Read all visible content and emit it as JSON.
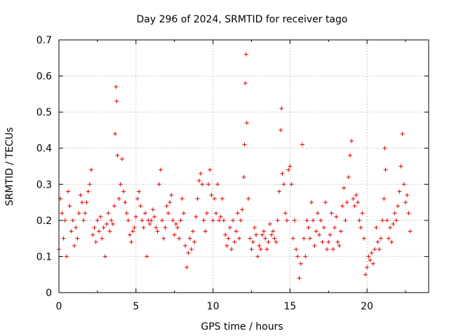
{
  "chart_data": {
    "type": "scatter",
    "title": "Day 296 of 2024, SRMTID for receiver tago",
    "xlabel": "GPS time / hours",
    "ylabel": "SRMTID / TECUs",
    "xlim": [
      0,
      24
    ],
    "ylim": [
      0,
      0.7
    ],
    "xticks": [
      0,
      5,
      10,
      15,
      20
    ],
    "xtick_labels": [
      "0",
      "5",
      "10",
      "15",
      "20"
    ],
    "yticks": [
      0,
      0.1,
      0.2,
      0.3,
      0.4,
      0.5,
      0.6,
      0.7
    ],
    "ytick_labels": [
      "0",
      "0.1",
      "0.2",
      "0.3",
      "0.4",
      "0.5",
      "0.6",
      "0.7"
    ],
    "grid": true,
    "marker": "plus",
    "color": "#e00000",
    "series": [
      {
        "name": "SRMTID",
        "points": [
          [
            0.0,
            0.12
          ],
          [
            0.1,
            0.26
          ],
          [
            0.2,
            0.22
          ],
          [
            0.3,
            0.15
          ],
          [
            0.4,
            0.2
          ],
          [
            0.5,
            0.1
          ],
          [
            0.6,
            0.28
          ],
          [
            0.7,
            0.24
          ],
          [
            0.8,
            0.17
          ],
          [
            0.9,
            0.2
          ],
          [
            1.0,
            0.13
          ],
          [
            1.1,
            0.18
          ],
          [
            1.2,
            0.15
          ],
          [
            1.3,
            0.22
          ],
          [
            1.4,
            0.27
          ],
          [
            1.5,
            0.25
          ],
          [
            1.6,
            0.2
          ],
          [
            1.7,
            0.22
          ],
          [
            1.8,
            0.25
          ],
          [
            1.9,
            0.28
          ],
          [
            2.0,
            0.3
          ],
          [
            2.1,
            0.34
          ],
          [
            2.2,
            0.16
          ],
          [
            2.3,
            0.18
          ],
          [
            2.4,
            0.14
          ],
          [
            2.5,
            0.2
          ],
          [
            2.6,
            0.17
          ],
          [
            2.7,
            0.21
          ],
          [
            2.8,
            0.15
          ],
          [
            2.9,
            0.18
          ],
          [
            3.0,
            0.1
          ],
          [
            3.1,
            0.19
          ],
          [
            3.2,
            0.22
          ],
          [
            3.3,
            0.17
          ],
          [
            3.4,
            0.2
          ],
          [
            3.5,
            0.19
          ],
          [
            3.6,
            0.24
          ],
          [
            3.65,
            0.44
          ],
          [
            3.7,
            0.57
          ],
          [
            3.75,
            0.53
          ],
          [
            3.8,
            0.38
          ],
          [
            3.9,
            0.26
          ],
          [
            4.0,
            0.3
          ],
          [
            4.1,
            0.37
          ],
          [
            4.2,
            0.28
          ],
          [
            4.3,
            0.25
          ],
          [
            4.4,
            0.22
          ],
          [
            4.5,
            0.2
          ],
          [
            4.6,
            0.16
          ],
          [
            4.7,
            0.14
          ],
          [
            4.8,
            0.17
          ],
          [
            4.9,
            0.18
          ],
          [
            5.0,
            0.21
          ],
          [
            5.1,
            0.26
          ],
          [
            5.2,
            0.28
          ],
          [
            5.3,
            0.24
          ],
          [
            5.4,
            0.2
          ],
          [
            5.5,
            0.18
          ],
          [
            5.6,
            0.22
          ],
          [
            5.7,
            0.1
          ],
          [
            5.8,
            0.2
          ],
          [
            5.9,
            0.19
          ],
          [
            6.0,
            0.2
          ],
          [
            6.1,
            0.23
          ],
          [
            6.2,
            0.21
          ],
          [
            6.3,
            0.18
          ],
          [
            6.4,
            0.17
          ],
          [
            6.5,
            0.3
          ],
          [
            6.6,
            0.34
          ],
          [
            6.7,
            0.2
          ],
          [
            6.8,
            0.15
          ],
          [
            6.9,
            0.18
          ],
          [
            7.0,
            0.24
          ],
          [
            7.1,
            0.22
          ],
          [
            7.2,
            0.25
          ],
          [
            7.3,
            0.27
          ],
          [
            7.4,
            0.2
          ],
          [
            7.5,
            0.16
          ],
          [
            7.6,
            0.19
          ],
          [
            7.7,
            0.18
          ],
          [
            7.8,
            0.15
          ],
          [
            7.9,
            0.2
          ],
          [
            8.0,
            0.26
          ],
          [
            8.1,
            0.22
          ],
          [
            8.2,
            0.13
          ],
          [
            8.3,
            0.07
          ],
          [
            8.4,
            0.11
          ],
          [
            8.5,
            0.15
          ],
          [
            8.6,
            0.12
          ],
          [
            8.7,
            0.17
          ],
          [
            8.8,
            0.14
          ],
          [
            8.9,
            0.21
          ],
          [
            9.0,
            0.26
          ],
          [
            9.1,
            0.31
          ],
          [
            9.2,
            0.33
          ],
          [
            9.3,
            0.3
          ],
          [
            9.4,
            0.2
          ],
          [
            9.5,
            0.17
          ],
          [
            9.6,
            0.22
          ],
          [
            9.7,
            0.3
          ],
          [
            9.8,
            0.34
          ],
          [
            9.9,
            0.27
          ],
          [
            10.0,
            0.2
          ],
          [
            10.1,
            0.26
          ],
          [
            10.2,
            0.22
          ],
          [
            10.3,
            0.3
          ],
          [
            10.4,
            0.2
          ],
          [
            10.5,
            0.21
          ],
          [
            10.6,
            0.26
          ],
          [
            10.7,
            0.2
          ],
          [
            10.8,
            0.16
          ],
          [
            10.9,
            0.13
          ],
          [
            11.0,
            0.15
          ],
          [
            11.1,
            0.18
          ],
          [
            11.2,
            0.12
          ],
          [
            11.3,
            0.2
          ],
          [
            11.4,
            0.14
          ],
          [
            11.5,
            0.17
          ],
          [
            11.6,
            0.22
          ],
          [
            11.7,
            0.15
          ],
          [
            11.8,
            0.2
          ],
          [
            11.9,
            0.23
          ],
          [
            12.0,
            0.32
          ],
          [
            12.05,
            0.41
          ],
          [
            12.1,
            0.58
          ],
          [
            12.15,
            0.66
          ],
          [
            12.2,
            0.47
          ],
          [
            12.3,
            0.26
          ],
          [
            12.4,
            0.15
          ],
          [
            12.5,
            0.12
          ],
          [
            12.6,
            0.14
          ],
          [
            12.7,
            0.18
          ],
          [
            12.8,
            0.16
          ],
          [
            12.9,
            0.1
          ],
          [
            13.0,
            0.13
          ],
          [
            13.1,
            0.12
          ],
          [
            13.2,
            0.16
          ],
          [
            13.3,
            0.17
          ],
          [
            13.4,
            0.15
          ],
          [
            13.5,
            0.12
          ],
          [
            13.6,
            0.14
          ],
          [
            13.7,
            0.19
          ],
          [
            13.8,
            0.16
          ],
          [
            13.9,
            0.17
          ],
          [
            14.0,
            0.15
          ],
          [
            14.1,
            0.14
          ],
          [
            14.2,
            0.2
          ],
          [
            14.3,
            0.28
          ],
          [
            14.4,
            0.45
          ],
          [
            14.45,
            0.51
          ],
          [
            14.5,
            0.33
          ],
          [
            14.6,
            0.3
          ],
          [
            14.7,
            0.22
          ],
          [
            14.8,
            0.2
          ],
          [
            14.9,
            0.34
          ],
          [
            15.0,
            0.35
          ],
          [
            15.1,
            0.3
          ],
          [
            15.2,
            0.15
          ],
          [
            15.3,
            0.2
          ],
          [
            15.4,
            0.12
          ],
          [
            15.5,
            0.1
          ],
          [
            15.6,
            0.04
          ],
          [
            15.7,
            0.08
          ],
          [
            15.8,
            0.41
          ],
          [
            15.9,
            0.15
          ],
          [
            16.0,
            0.1
          ],
          [
            16.1,
            0.2
          ],
          [
            16.2,
            0.18
          ],
          [
            16.3,
            0.15
          ],
          [
            16.4,
            0.25
          ],
          [
            16.5,
            0.2
          ],
          [
            16.6,
            0.13
          ],
          [
            16.7,
            0.17
          ],
          [
            16.8,
            0.22
          ],
          [
            16.9,
            0.16
          ],
          [
            17.0,
            0.2
          ],
          [
            17.1,
            0.14
          ],
          [
            17.2,
            0.18
          ],
          [
            17.3,
            0.25
          ],
          [
            17.4,
            0.12
          ],
          [
            17.5,
            0.14
          ],
          [
            17.6,
            0.16
          ],
          [
            17.7,
            0.22
          ],
          [
            17.8,
            0.12
          ],
          [
            17.9,
            0.18
          ],
          [
            18.0,
            0.21
          ],
          [
            18.1,
            0.14
          ],
          [
            18.2,
            0.13
          ],
          [
            18.3,
            0.17
          ],
          [
            18.4,
            0.24
          ],
          [
            18.5,
            0.29
          ],
          [
            18.6,
            0.2
          ],
          [
            18.7,
            0.25
          ],
          [
            18.8,
            0.32
          ],
          [
            18.9,
            0.38
          ],
          [
            19.0,
            0.42
          ],
          [
            19.1,
            0.26
          ],
          [
            19.2,
            0.24
          ],
          [
            19.3,
            0.27
          ],
          [
            19.4,
            0.25
          ],
          [
            19.5,
            0.2
          ],
          [
            19.6,
            0.18
          ],
          [
            19.7,
            0.22
          ],
          [
            19.8,
            0.15
          ],
          [
            19.9,
            0.05
          ],
          [
            20.0,
            0.07
          ],
          [
            20.1,
            0.1
          ],
          [
            20.2,
            0.09
          ],
          [
            20.3,
            0.11
          ],
          [
            20.4,
            0.08
          ],
          [
            20.5,
            0.12
          ],
          [
            20.6,
            0.18
          ],
          [
            20.7,
            0.14
          ],
          [
            20.8,
            0.12
          ],
          [
            20.9,
            0.15
          ],
          [
            21.0,
            0.2
          ],
          [
            21.1,
            0.26
          ],
          [
            21.15,
            0.4
          ],
          [
            21.2,
            0.34
          ],
          [
            21.3,
            0.2
          ],
          [
            21.4,
            0.15
          ],
          [
            21.5,
            0.18
          ],
          [
            21.6,
            0.14
          ],
          [
            21.7,
            0.19
          ],
          [
            21.8,
            0.22
          ],
          [
            21.9,
            0.2
          ],
          [
            22.0,
            0.24
          ],
          [
            22.1,
            0.28
          ],
          [
            22.2,
            0.35
          ],
          [
            22.3,
            0.44
          ],
          [
            22.4,
            0.3
          ],
          [
            22.5,
            0.25
          ],
          [
            22.6,
            0.27
          ],
          [
            22.7,
            0.22
          ],
          [
            22.8,
            0.17
          ]
        ]
      }
    ]
  }
}
